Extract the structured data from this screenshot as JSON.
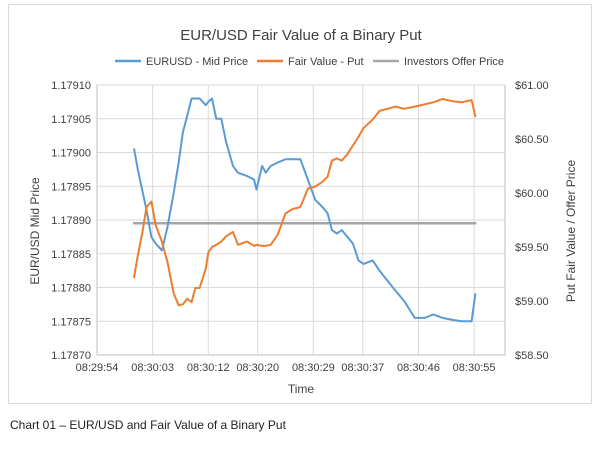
{
  "caption": "Chart 01 – EUR/USD and Fair Value of a Binary Put",
  "chart_data": {
    "type": "line",
    "title": "EUR/USD Fair Value of a Binary Put",
    "xlabel": "Time",
    "ylabel": "EUR/USD Mid Price",
    "y2label": "Put Fair Value / Offer Price",
    "x_ticks": [
      "08:29:54",
      "08:30:03",
      "08:30:12",
      "08:30:20",
      "08:30:29",
      "08:30:37",
      "08:30:46",
      "08:30:55"
    ],
    "x_tick_seconds": [
      0,
      9,
      18,
      26,
      35,
      43,
      52,
      61
    ],
    "xlim": [
      0,
      66
    ],
    "ylim": [
      1.1787,
      1.1791
    ],
    "y_ticks": [
      "1.17870",
      "1.17875",
      "1.17880",
      "1.17885",
      "1.17890",
      "1.17895",
      "1.17900",
      "1.17905",
      "1.17910"
    ],
    "y2lim": [
      58.5,
      61.0
    ],
    "y2_ticks": [
      "$58.50",
      "$59.00",
      "$59.50",
      "$60.00",
      "$60.50",
      "$61.00"
    ],
    "grid": true,
    "legend_position": "top",
    "series": [
      {
        "name": "EURUSD - Mid Price",
        "axis": "left",
        "color": "#5B9BD5",
        "x": [
          6.0,
          6.6,
          7.3,
          8.0,
          8.8,
          9.5,
          10.5,
          11.4,
          12.4,
          13.2,
          13.9,
          14.6,
          15.3,
          15.9,
          16.6,
          17.6,
          18.0,
          18.6,
          19.3,
          20.1,
          20.9,
          22.0,
          22.8,
          24.3,
          25.4,
          25.8,
          26.7,
          27.3,
          28.1,
          29.2,
          30.5,
          31.6,
          32.9,
          34.1,
          35.3,
          36.4,
          37.3,
          38.0,
          38.8,
          39.6,
          40.5,
          41.4,
          42.3,
          43.1,
          44.6,
          45.7,
          47.0,
          48.3,
          49.7,
          51.4,
          53.0,
          54.4,
          55.9,
          57.5,
          59.0,
          60.6,
          61.2
        ],
        "y": [
          1.179005,
          1.178975,
          1.178945,
          1.178915,
          1.178875,
          1.178865,
          1.178855,
          1.17889,
          1.17894,
          1.178985,
          1.17903,
          1.179055,
          1.17908,
          1.17908,
          1.17908,
          1.17907,
          1.179075,
          1.17908,
          1.17905,
          1.17905,
          1.179015,
          1.17898,
          1.17897,
          1.178965,
          1.17896,
          1.178945,
          1.17898,
          1.17897,
          1.17898,
          1.178985,
          1.17899,
          1.17899,
          1.17899,
          1.17896,
          1.17893,
          1.17892,
          1.17891,
          1.178885,
          1.17888,
          1.178885,
          1.178875,
          1.178865,
          1.17884,
          1.178835,
          1.17884,
          1.178825,
          1.17881,
          1.178795,
          1.17878,
          1.178755,
          1.178755,
          1.17876,
          1.178755,
          1.178752,
          1.17875,
          1.17875,
          1.17879
        ]
      },
      {
        "name": "Fair Value - Put",
        "axis": "right",
        "color": "#ED7D31",
        "x": [
          6.0,
          6.6,
          7.3,
          8.0,
          8.8,
          9.5,
          10.5,
          11.4,
          12.4,
          13.2,
          13.9,
          14.6,
          15.3,
          15.9,
          16.6,
          17.6,
          18.0,
          18.6,
          19.3,
          20.1,
          20.9,
          22.0,
          22.8,
          24.3,
          25.4,
          25.8,
          26.7,
          27.3,
          28.1,
          29.2,
          30.5,
          31.6,
          32.9,
          34.1,
          35.3,
          36.4,
          37.3,
          38.0,
          38.8,
          39.6,
          40.5,
          41.4,
          42.3,
          43.1,
          44.6,
          45.7,
          47.0,
          48.3,
          49.7,
          51.4,
          53.0,
          54.4,
          55.9,
          57.5,
          59.0,
          60.6,
          61.2
        ],
        "y": [
          59.22,
          59.42,
          59.62,
          59.87,
          59.92,
          59.7,
          59.55,
          59.36,
          59.07,
          58.96,
          58.97,
          59.02,
          58.99,
          59.12,
          59.12,
          59.3,
          59.45,
          59.5,
          59.52,
          59.55,
          59.6,
          59.64,
          59.52,
          59.55,
          59.51,
          59.52,
          59.51,
          59.51,
          59.52,
          59.61,
          59.81,
          59.85,
          59.87,
          60.04,
          60.06,
          60.1,
          60.15,
          60.3,
          60.32,
          60.3,
          60.36,
          60.44,
          60.52,
          60.6,
          60.68,
          60.76,
          60.78,
          60.8,
          60.78,
          60.8,
          60.82,
          60.84,
          60.87,
          60.85,
          60.84,
          60.86,
          60.71
        ]
      },
      {
        "name": "Investors Offer Price",
        "axis": "right",
        "color": "#A5A5A5",
        "x": [
          6.0,
          61.2
        ],
        "y": [
          59.72,
          59.72
        ]
      }
    ]
  }
}
